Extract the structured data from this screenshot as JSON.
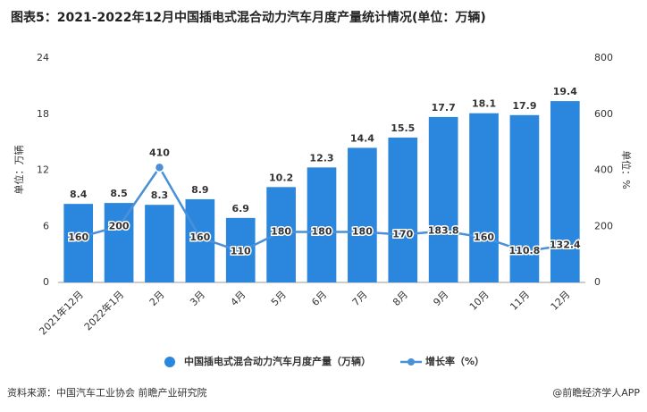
{
  "chart_data": {
    "type": "bar",
    "title": "图表5：2021-2022年12月中国插电式混合动力汽车月度产量统计情况(单位：万辆)",
    "y_label": "单位：万辆",
    "y2_label": "单位：%",
    "categories": [
      "2021年12月",
      "2022年1月",
      "2月",
      "3月",
      "4月",
      "5月",
      "6月",
      "7月",
      "8月",
      "9月",
      "10月",
      "11月",
      "12月"
    ],
    "series": [
      {
        "name": "中国插电式混合动力汽车月度产量（万辆）",
        "type": "bar",
        "color": "#2b87de",
        "values": [
          8.4,
          8.5,
          8.3,
          8.9,
          6.9,
          10.2,
          12.3,
          14.4,
          15.5,
          17.7,
          18.1,
          17.9,
          19.4
        ]
      },
      {
        "name": "增长率（%）",
        "type": "line",
        "axis": "y2",
        "color": "#4a90d9",
        "values": [
          160,
          200,
          410,
          160,
          110,
          180,
          180,
          180,
          170,
          183.8,
          160,
          110.8,
          132.4
        ]
      }
    ],
    "ylim": [
      0,
      24
    ],
    "yticks": [
      0,
      6,
      12,
      18,
      24
    ],
    "y2lim": [
      0,
      800
    ],
    "y2ticks": [
      0,
      200,
      400,
      600,
      800
    ],
    "source": "资料来源：中国汽车工业协会 前瞻产业研究院",
    "credit": "@前瞻经济学人APP"
  }
}
